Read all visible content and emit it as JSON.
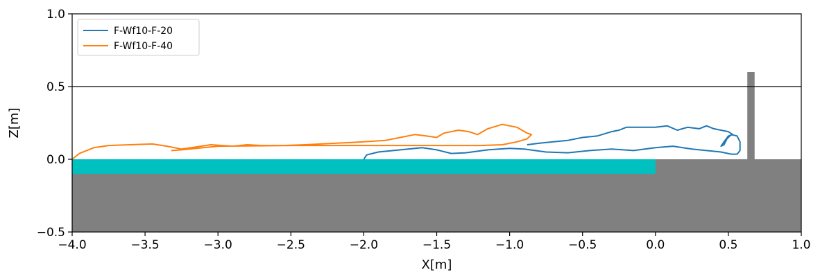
{
  "chart_data": {
    "type": "line",
    "title": "",
    "xlabel": "X[m]",
    "ylabel": "Z[m]",
    "xlim": [
      -4.0,
      1.0
    ],
    "ylim": [
      -0.5,
      1.0
    ],
    "grid": false,
    "legend_position": "top-left",
    "x_ticks": [
      "−4.0",
      "−3.5",
      "−3.0",
      "−2.5",
      "−2.0",
      "−1.5",
      "−1.0",
      "−0.5",
      "0.0",
      "0.5",
      "1.0"
    ],
    "x_tick_values": [
      -4.0,
      -3.5,
      -3.0,
      -2.5,
      -2.0,
      -1.5,
      -1.0,
      -0.5,
      0.0,
      0.5,
      1.0
    ],
    "y_ticks": [
      "−0.5",
      "0.0",
      "0.5",
      "1.0"
    ],
    "y_tick_values": [
      -0.5,
      0.0,
      0.5,
      1.0
    ],
    "reference_line_y": 0.5,
    "regions": {
      "ground": {
        "x": [
          -4.0,
          1.0
        ],
        "z": [
          -0.5,
          0.0
        ],
        "color": "#808080"
      },
      "water_layer": {
        "x": [
          -4.0,
          0.0
        ],
        "z": [
          -0.1,
          0.0
        ],
        "color": "#00c0c0"
      },
      "wall": {
        "x": [
          0.63,
          0.68
        ],
        "z": [
          0.0,
          0.6
        ],
        "color": "#808080"
      }
    },
    "series": [
      {
        "name": "F-Wf10-F-20",
        "color": "#1f77b4",
        "points": [
          [
            -2.0,
            0.0
          ],
          [
            -1.98,
            0.03
          ],
          [
            -1.9,
            0.05
          ],
          [
            -1.75,
            0.065
          ],
          [
            -1.6,
            0.08
          ],
          [
            -1.5,
            0.065
          ],
          [
            -1.4,
            0.04
          ],
          [
            -1.3,
            0.045
          ],
          [
            -1.15,
            0.065
          ],
          [
            -1.0,
            0.075
          ],
          [
            -0.9,
            0.07
          ],
          [
            -0.75,
            0.05
          ],
          [
            -0.6,
            0.045
          ],
          [
            -0.45,
            0.06
          ],
          [
            -0.3,
            0.07
          ],
          [
            -0.15,
            0.06
          ],
          [
            0.0,
            0.08
          ],
          [
            0.12,
            0.09
          ],
          [
            0.25,
            0.07
          ],
          [
            0.35,
            0.06
          ],
          [
            0.45,
            0.05
          ],
          [
            0.52,
            0.035
          ],
          [
            0.56,
            0.035
          ],
          [
            0.58,
            0.06
          ],
          [
            0.58,
            0.12
          ],
          [
            0.56,
            0.16
          ],
          [
            0.52,
            0.17
          ],
          [
            0.49,
            0.14
          ],
          [
            0.47,
            0.1
          ],
          [
            0.45,
            0.09
          ],
          [
            0.47,
            0.12
          ],
          [
            0.5,
            0.16
          ],
          [
            0.53,
            0.17
          ],
          [
            0.5,
            0.19
          ],
          [
            0.45,
            0.2
          ],
          [
            0.4,
            0.21
          ],
          [
            0.35,
            0.23
          ],
          [
            0.3,
            0.21
          ],
          [
            0.22,
            0.22
          ],
          [
            0.15,
            0.2
          ],
          [
            0.08,
            0.23
          ],
          [
            0.0,
            0.22
          ],
          [
            -0.1,
            0.22
          ],
          [
            -0.2,
            0.22
          ],
          [
            -0.25,
            0.2
          ],
          [
            -0.3,
            0.19
          ],
          [
            -0.4,
            0.16
          ],
          [
            -0.5,
            0.15
          ],
          [
            -0.6,
            0.13
          ],
          [
            -0.7,
            0.12
          ],
          [
            -0.8,
            0.11
          ],
          [
            -0.88,
            0.1
          ]
        ]
      },
      {
        "name": "F-Wf10-F-40",
        "color": "#ff7f0e",
        "points": [
          [
            -4.0,
            0.0
          ],
          [
            -3.95,
            0.04
          ],
          [
            -3.85,
            0.08
          ],
          [
            -3.75,
            0.095
          ],
          [
            -3.6,
            0.1
          ],
          [
            -3.45,
            0.105
          ],
          [
            -3.35,
            0.09
          ],
          [
            -3.25,
            0.07
          ],
          [
            -3.15,
            0.085
          ],
          [
            -3.05,
            0.1
          ],
          [
            -2.9,
            0.09
          ],
          [
            -2.8,
            0.1
          ],
          [
            -2.7,
            0.095
          ],
          [
            -2.55,
            0.095
          ],
          [
            -2.4,
            0.1
          ],
          [
            -2.2,
            0.11
          ],
          [
            -2.0,
            0.12
          ],
          [
            -1.85,
            0.13
          ],
          [
            -1.75,
            0.15
          ],
          [
            -1.65,
            0.17
          ],
          [
            -1.57,
            0.16
          ],
          [
            -1.5,
            0.15
          ],
          [
            -1.45,
            0.18
          ],
          [
            -1.35,
            0.2
          ],
          [
            -1.28,
            0.19
          ],
          [
            -1.22,
            0.17
          ],
          [
            -1.15,
            0.21
          ],
          [
            -1.05,
            0.24
          ],
          [
            -0.95,
            0.22
          ],
          [
            -0.88,
            0.18
          ],
          [
            -0.85,
            0.17
          ],
          [
            -0.88,
            0.14
          ],
          [
            -0.95,
            0.12
          ],
          [
            -1.05,
            0.1
          ],
          [
            -1.2,
            0.095
          ],
          [
            -1.5,
            0.095
          ],
          [
            -2.0,
            0.095
          ],
          [
            -2.5,
            0.095
          ],
          [
            -3.0,
            0.09
          ],
          [
            -3.25,
            0.065
          ],
          [
            -3.32,
            0.06
          ]
        ]
      }
    ]
  }
}
